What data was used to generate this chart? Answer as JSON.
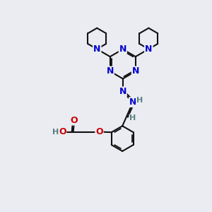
{
  "bg_color": "#eaecf2",
  "N_color": "#0000cc",
  "O_color": "#cc0000",
  "H_color": "#5a8080",
  "bond_color": "#111111",
  "lw": 1.5,
  "figsize": [
    3.0,
    3.0
  ],
  "dpi": 100,
  "xlim": [
    0,
    10
  ],
  "ylim": [
    0,
    10
  ]
}
